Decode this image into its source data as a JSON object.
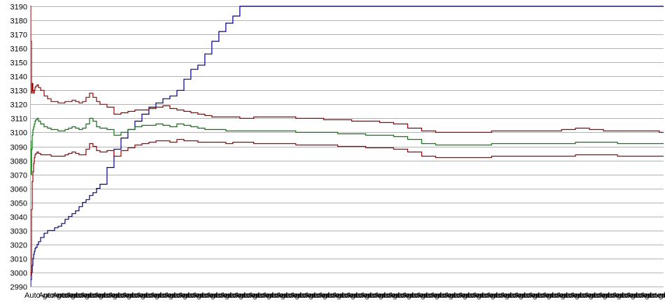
{
  "chart_data": {
    "type": "line",
    "title": "",
    "xlabel": "",
    "ylabel": "",
    "ylim": [
      2990,
      3190
    ],
    "yticks": [
      2990,
      3000,
      3010,
      3020,
      3030,
      3040,
      3050,
      3060,
      3070,
      3080,
      3090,
      3100,
      3110,
      3120,
      3130,
      3140,
      3150,
      3160,
      3170,
      3180,
      3190
    ],
    "grid": true,
    "legend": "none",
    "x": [
      0,
      1,
      2,
      3,
      4,
      5,
      6,
      7,
      8,
      10,
      12,
      15,
      20,
      25,
      30,
      35,
      40,
      45,
      50,
      55,
      60,
      65,
      70,
      75,
      80,
      85,
      90,
      95,
      100,
      110,
      120,
      130,
      140,
      150,
      160,
      170,
      180,
      190,
      200,
      210,
      220,
      230,
      240,
      250,
      260,
      270,
      280,
      290,
      300,
      310,
      320,
      340,
      360,
      380,
      400,
      420,
      440,
      460,
      480,
      500,
      520,
      540,
      560,
      580,
      600,
      620,
      640,
      660,
      680,
      700,
      720,
      740,
      760,
      780,
      800,
      820,
      840,
      860,
      880,
      900,
      906
    ],
    "x_tick_label": "Auto-generated",
    "series": [
      {
        "color": "#00007f",
        "values": [
          2990,
          2995,
          3000,
          3005,
          3010,
          3013,
          3015,
          3017,
          3018,
          3020,
          3022,
          3025,
          3028,
          3030,
          3030,
          3032,
          3033,
          3035,
          3038,
          3040,
          3042,
          3044,
          3047,
          3050,
          3052,
          3055,
          3057,
          3060,
          3063,
          3075,
          3088,
          3096,
          3102,
          3108,
          3113,
          3118,
          3121,
          3124,
          3126,
          3130,
          3138,
          3145,
          3148,
          3156,
          3165,
          3172,
          3178,
          3183,
          3190,
          3190,
          3190,
          3190,
          3190,
          3190,
          3190,
          3190,
          3190,
          3190,
          3190,
          3190,
          3190,
          3190,
          3190,
          3190,
          3190,
          3190,
          3190,
          3190,
          3190,
          3190,
          3190,
          3190,
          3190,
          3190,
          3190,
          3190,
          3190,
          3190,
          3190,
          3190,
          3190
        ]
      },
      {
        "color": "#007f00",
        "values": [
          3094,
          3070,
          3088,
          3098,
          3102,
          3104,
          3106,
          3108,
          3109,
          3110,
          3108,
          3106,
          3104,
          3103,
          3102,
          3102,
          3101,
          3101,
          3102,
          3103,
          3104,
          3103,
          3102,
          3103,
          3106,
          3110,
          3108,
          3104,
          3103,
          3102,
          3098,
          3100,
          3102,
          3104,
          3105,
          3105,
          3106,
          3105,
          3104,
          3106,
          3105,
          3104,
          3103,
          3102,
          3102,
          3102,
          3101,
          3101,
          3101,
          3101,
          3101,
          3101,
          3101,
          3100,
          3100,
          3100,
          3099,
          3099,
          3098,
          3098,
          3097,
          3095,
          3092,
          3091,
          3091,
          3091,
          3091,
          3092,
          3092,
          3092,
          3092,
          3092,
          3092,
          3093,
          3093,
          3093,
          3092,
          3092,
          3092,
          3092,
          3092
        ]
      },
      {
        "color": "#9f0000",
        "values": [
          3190,
          3165,
          3128,
          3135,
          3130,
          3128,
          3130,
          3132,
          3133,
          3134,
          3132,
          3130,
          3126,
          3124,
          3122,
          3122,
          3121,
          3121,
          3122,
          3122,
          3123,
          3122,
          3121,
          3122,
          3125,
          3128,
          3125,
          3122,
          3120,
          3118,
          3113,
          3114,
          3115,
          3116,
          3116,
          3117,
          3118,
          3119,
          3117,
          3116,
          3115,
          3114,
          3113,
          3112,
          3111,
          3111,
          3111,
          3111,
          3110,
          3110,
          3111,
          3111,
          3111,
          3110,
          3110,
          3109,
          3109,
          3108,
          3108,
          3107,
          3106,
          3103,
          3101,
          3100,
          3100,
          3100,
          3100,
          3101,
          3101,
          3101,
          3101,
          3101,
          3102,
          3103,
          3102,
          3101,
          3101,
          3101,
          3101,
          3100,
          3100
        ]
      },
      {
        "color": "#9f0000",
        "values": [
          3000,
          2998,
          3045,
          3065,
          3072,
          3078,
          3082,
          3084,
          3085,
          3086,
          3085,
          3084,
          3084,
          3084,
          3083,
          3083,
          3083,
          3083,
          3084,
          3085,
          3086,
          3085,
          3084,
          3084,
          3088,
          3092,
          3090,
          3087,
          3086,
          3087,
          3083,
          3087,
          3089,
          3091,
          3092,
          3093,
          3094,
          3094,
          3093,
          3095,
          3094,
          3094,
          3093,
          3093,
          3093,
          3093,
          3092,
          3093,
          3093,
          3093,
          3092,
          3092,
          3092,
          3091,
          3091,
          3091,
          3090,
          3090,
          3089,
          3089,
          3088,
          3086,
          3083,
          3082,
          3082,
          3082,
          3082,
          3083,
          3083,
          3083,
          3083,
          3083,
          3083,
          3084,
          3084,
          3084,
          3083,
          3083,
          3083,
          3083,
          3083
        ]
      }
    ]
  }
}
